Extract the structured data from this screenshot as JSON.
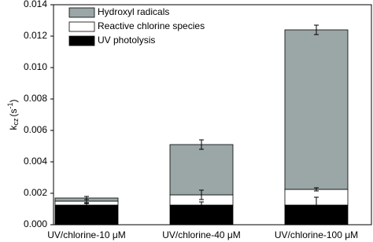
{
  "chart_data": {
    "type": "stacked-bar",
    "y_label": [
      "k",
      "cz",
      "(s",
      "-1",
      ")"
    ],
    "categories": [
      "UV/chlorine-10 μM",
      "UV/chlorine-40 μM",
      "UV/chlorine-100 μM"
    ],
    "series": [
      {
        "name": "Hydroxyl radicals",
        "color": "#9ba6a6",
        "values": [
          0.0002,
          0.0032,
          0.01015
        ],
        "errors": [
          0.0001,
          0.0003,
          0.0003
        ]
      },
      {
        "name": "Reactive chlorine species",
        "color": "#ffffff",
        "values": [
          0.00025,
          0.00065,
          0.001
        ],
        "errors": [
          0.0001,
          0.0003,
          0.0001
        ]
      },
      {
        "name": "UV photolysis",
        "color": "#000000",
        "values": [
          0.00125,
          0.00125,
          0.00125
        ],
        "errors": [
          0.0001,
          0.0002,
          0.0005
        ]
      }
    ],
    "ylim": [
      0,
      0.014
    ],
    "yticks": [
      {
        "value": 0,
        "label": "0.000"
      },
      0.002,
      0.004,
      0.006,
      0.008,
      {
        "value": 0.01,
        "label": "0.010"
      },
      0.012,
      0.014
    ],
    "legend": "upper-left"
  }
}
